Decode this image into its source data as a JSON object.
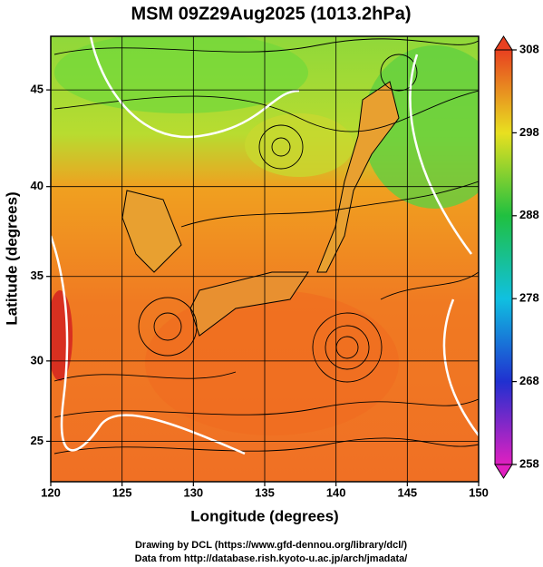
{
  "chart_data": {
    "type": "map",
    "title": "MSM 09Z29Aug2025 (1013.2hPa)",
    "xlabel": "Longitude (degrees)",
    "ylabel": "Latitude  (degrees)",
    "projection": "mercator",
    "xlim": [
      120,
      150
    ],
    "ylim": [
      22.4,
      47.6
    ],
    "xticks": [
      120,
      125,
      130,
      135,
      140,
      145,
      150
    ],
    "yticks": [
      25,
      30,
      35,
      40,
      45
    ],
    "grid": true,
    "colorbar": {
      "lim": [
        258,
        308
      ],
      "ticks": [
        258,
        268,
        278,
        288,
        298,
        308
      ]
    },
    "credits": [
      "Drawing by DCL (https://www.gfd-dennou.org/library/dcl/)",
      "Data from http://database.rish.kyoto-u.ac.jp/arch/jmadata/"
    ]
  }
}
